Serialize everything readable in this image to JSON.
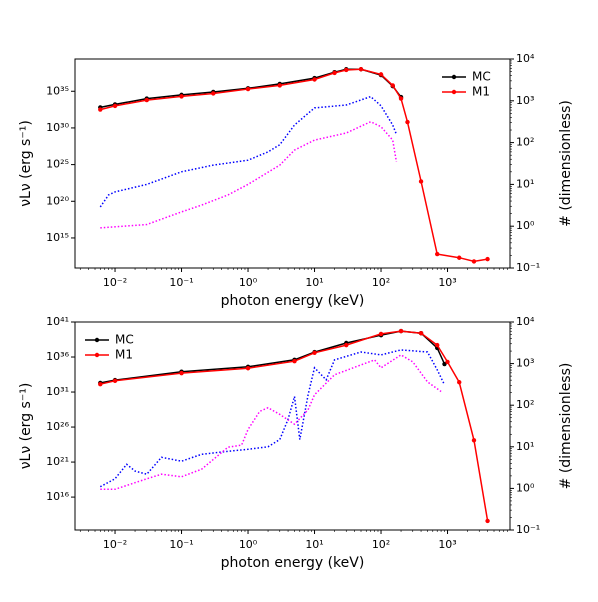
{
  "chart_data": [
    {
      "type": "line",
      "xlabel": "photon energy (keV)",
      "ylabel": "νLν (erg s⁻¹)",
      "y2label": "# (dimensionless)",
      "xscale": "log",
      "yscale": "log",
      "y2scale": "log",
      "legend": "upper right",
      "xlim": [
        0.0025,
        8700
      ],
      "ylim": [
        80000000000.0,
        2.5e+39
      ],
      "y2lim": [
        0.1,
        10000
      ],
      "xticks": [
        {
          "value": 0.01,
          "label": "10⁻²"
        },
        {
          "value": 0.1,
          "label": "10⁻¹"
        },
        {
          "value": 1,
          "label": "10⁰"
        },
        {
          "value": 10,
          "label": "10¹"
        },
        {
          "value": 100,
          "label": "10²"
        },
        {
          "value": 1000,
          "label": "10³"
        }
      ],
      "yticks": [
        {
          "value": 1000000000000000.0,
          "label": "10¹⁵"
        },
        {
          "value": 1e+20,
          "label": "10²⁰"
        },
        {
          "value": 1e+25,
          "label": "10²⁵"
        },
        {
          "value": 1e+30,
          "label": "10³⁰"
        },
        {
          "value": 1e+35,
          "label": "10³⁵"
        }
      ],
      "y2ticks": [
        {
          "value": 0.1,
          "label": "10⁻¹"
        },
        {
          "value": 1,
          "label": "10⁰"
        },
        {
          "value": 10,
          "label": "10¹"
        },
        {
          "value": 100,
          "label": "10²"
        },
        {
          "value": 1000,
          "label": "10³"
        },
        {
          "value": 10000,
          "label": "10⁴"
        }
      ],
      "series": [
        {
          "name": "MC",
          "color": "#000000",
          "linestyle": "solid",
          "marker": true,
          "x": [
            0.006,
            0.01,
            0.03,
            0.1,
            0.3,
            1,
            3,
            10,
            20,
            30,
            50,
            100,
            150,
            200
          ],
          "values": [
            6.3e+32,
            1.6e+33,
            1e+34,
            3.2e+34,
            8e+34,
            2.5e+35,
            1e+36,
            6.3e+36,
            4e+37,
            1e+38,
            1e+38,
            1.6e+37,
            5e+35,
            1.6e+34
          ]
        },
        {
          "name": "M1",
          "color": "#ff0000",
          "linestyle": "solid",
          "marker": true,
          "x": [
            0.006,
            0.01,
            0.03,
            0.1,
            0.3,
            1,
            3,
            10,
            20,
            30,
            50,
            100,
            150,
            200,
            250,
            400,
            700,
            1500,
            2500,
            4000
          ],
          "values": [
            3.2e+32,
            1e+33,
            6.3e+33,
            2e+34,
            5e+34,
            2e+35,
            6.3e+35,
            4e+36,
            3.2e+37,
            8e+37,
            1e+38,
            2e+37,
            6.3e+35,
            1e+34,
            6.3e+30,
            5e+22,
            6300000000000.0,
            2000000000000.0,
            630000000000.0,
            1300000000000.0
          ]
        },
        {
          "color": "#0000ff",
          "linestyle": "dotted",
          "marker": false,
          "axis": "y2",
          "x": [
            0.006,
            0.008,
            0.01,
            0.03,
            0.1,
            0.3,
            1,
            2,
            3,
            5,
            10,
            30,
            70,
            100,
            150,
            170
          ],
          "values": [
            2.9,
            5.6,
            6.6,
            10,
            20,
            29,
            38,
            60,
            89,
            263,
            676,
            794,
            1260,
            759,
            263,
            158
          ]
        },
        {
          "color": "#ff00ff",
          "linestyle": "dotted",
          "marker": false,
          "axis": "y2",
          "x": [
            0.006,
            0.03,
            0.1,
            0.2,
            0.5,
            1,
            3,
            5,
            10,
            30,
            70,
            100,
            150,
            170
          ],
          "values": [
            0.91,
            1.1,
            2.2,
            3.2,
            5.6,
            10,
            29,
            66,
            115,
            170,
            316,
            240,
            115,
            35
          ]
        }
      ]
    },
    {
      "type": "line",
      "xlabel": "photon energy (keV)",
      "ylabel": "νLν (erg s⁻¹)",
      "y2label": "# (dimensionless)",
      "xscale": "log",
      "yscale": "log",
      "y2scale": "log",
      "legend": "upper left",
      "xlim": [
        0.0025,
        8700
      ],
      "ylim": [
        200000000000.0,
        1e+41
      ],
      "y2lim": [
        0.1,
        10000
      ],
      "xticks": [
        {
          "value": 0.01,
          "label": "10⁻²"
        },
        {
          "value": 0.1,
          "label": "10⁻¹"
        },
        {
          "value": 1,
          "label": "10⁰"
        },
        {
          "value": 10,
          "label": "10¹"
        },
        {
          "value": 100,
          "label": "10²"
        },
        {
          "value": 1000,
          "label": "10³"
        }
      ],
      "yticks": [
        {
          "value": 1e+16,
          "label": "10¹⁶"
        },
        {
          "value": 1e+21,
          "label": "10²¹"
        },
        {
          "value": 1e+26,
          "label": "10²⁶"
        },
        {
          "value": 1e+31,
          "label": "10³¹"
        },
        {
          "value": 1e+36,
          "label": "10³⁶"
        },
        {
          "value": 1e+41,
          "label": "10⁴¹"
        }
      ],
      "y2ticks": [
        {
          "value": 0.1,
          "label": "10⁻¹"
        },
        {
          "value": 1,
          "label": "10⁰"
        },
        {
          "value": 10,
          "label": "10¹"
        },
        {
          "value": 100,
          "label": "10²"
        },
        {
          "value": 1000,
          "label": "10³"
        },
        {
          "value": 10000,
          "label": "10⁴"
        }
      ],
      "series": [
        {
          "name": "MC",
          "color": "#000000",
          "linestyle": "solid",
          "marker": true,
          "x": [
            0.006,
            0.01,
            0.1,
            1,
            5,
            10,
            30,
            100,
            200,
            400,
            700,
            900
          ],
          "values": [
            2e+32,
            5e+32,
            8e+33,
            4e+34,
            4e+35,
            5e+36,
            1e+38,
            1.3e+39,
            5e+39,
            2.5e+39,
            2e+37,
            1e+35
          ]
        },
        {
          "name": "M1",
          "color": "#ff0000",
          "linestyle": "solid",
          "marker": true,
          "x": [
            0.006,
            0.01,
            0.1,
            1,
            5,
            10,
            30,
            100,
            200,
            400,
            700,
            1000,
            1500,
            2500,
            4000
          ],
          "values": [
            1.3e+32,
            4e+32,
            5e+33,
            2.5e+34,
            2.5e+35,
            4e+36,
            5e+37,
            2e+39,
            5e+39,
            2.5e+39,
            5e+37,
            2e+35,
            2.5e+32,
            1.3e+24,
            4000000000000.0
          ]
        },
        {
          "color": "#0000ff",
          "linestyle": "dotted",
          "marker": false,
          "axis": "y2",
          "x": [
            0.006,
            0.01,
            0.015,
            0.02,
            0.03,
            0.05,
            0.1,
            0.2,
            0.5,
            1,
            2,
            3,
            4,
            5,
            6,
            8,
            10,
            15,
            20,
            50,
            100,
            200,
            500,
            700,
            900
          ],
          "values": [
            1.1,
            1.7,
            3.8,
            2.6,
            2.2,
            5.6,
            4.5,
            6.6,
            7.8,
            8.7,
            10,
            15,
            46,
            162,
            15,
            178,
            794,
            407,
            1230,
            1900,
            1620,
            2140,
            1900,
            708,
            309
          ]
        },
        {
          "color": "#ff00ff",
          "linestyle": "dotted",
          "marker": false,
          "axis": "y2",
          "x": [
            0.006,
            0.01,
            0.03,
            0.05,
            0.1,
            0.2,
            0.5,
            0.8,
            1,
            1.5,
            2,
            3,
            5,
            8,
            10,
            20,
            50,
            80,
            100,
            200,
            300,
            500,
            800
          ],
          "values": [
            0.95,
            0.95,
            1.7,
            2.2,
            1.9,
            2.9,
            9.8,
            11,
            26,
            71,
            87,
            60,
            35,
            78,
            178,
            537,
            933,
            1230,
            794,
            1620,
            1100,
            363,
            214
          ]
        }
      ]
    }
  ]
}
